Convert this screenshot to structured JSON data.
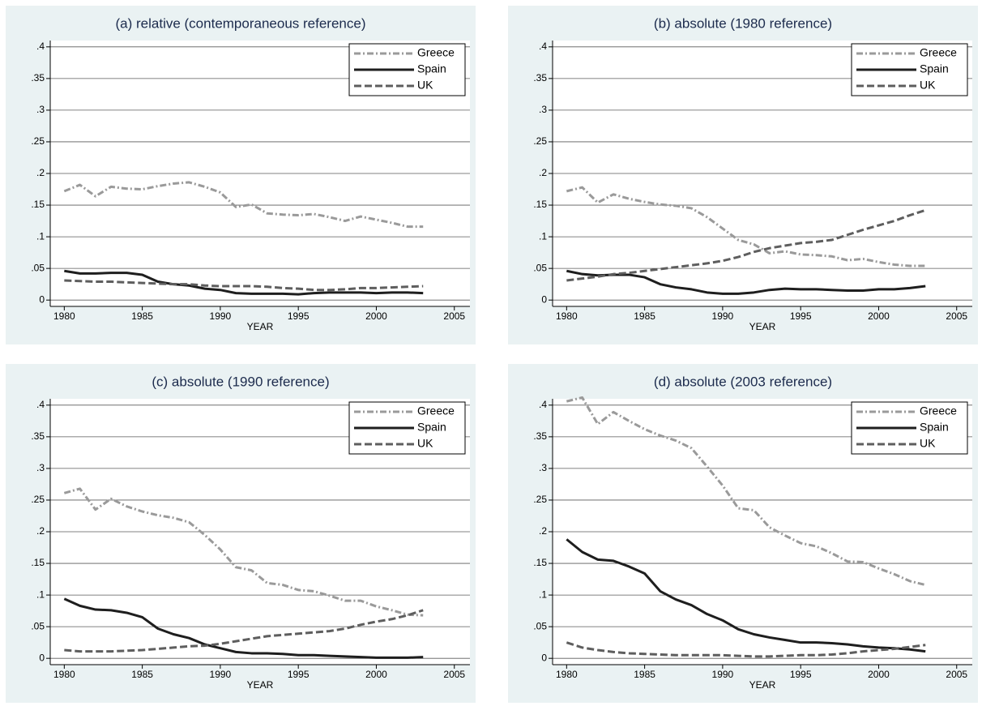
{
  "chart_data": [
    {
      "type": "line",
      "title": "(a) relative (contemporaneous reference)",
      "x_label": "YEAR",
      "x": [
        1980,
        1981,
        1982,
        1983,
        1984,
        1985,
        1986,
        1987,
        1988,
        1989,
        1990,
        1991,
        1992,
        1993,
        1994,
        1995,
        1996,
        1997,
        1998,
        1999,
        2000,
        2001,
        2002,
        2003
      ],
      "series": [
        {
          "name": "Greece",
          "color": "#9a9a9a",
          "linestyle": "dashdot",
          "values": [
            0.172,
            0.182,
            0.164,
            0.179,
            0.176,
            0.175,
            0.18,
            0.184,
            0.186,
            0.179,
            0.17,
            0.147,
            0.151,
            0.137,
            0.135,
            0.134,
            0.136,
            0.131,
            0.125,
            0.132,
            0.127,
            0.122,
            0.116,
            0.116
          ]
        },
        {
          "name": "Spain",
          "color": "#1e1e1e",
          "linestyle": "solid",
          "values": [
            0.046,
            0.042,
            0.042,
            0.043,
            0.043,
            0.04,
            0.029,
            0.025,
            0.023,
            0.018,
            0.016,
            0.011,
            0.01,
            0.01,
            0.01,
            0.009,
            0.011,
            0.012,
            0.012,
            0.012,
            0.011,
            0.012,
            0.012,
            0.011
          ]
        },
        {
          "name": "UK",
          "color": "#5e5e5e",
          "linestyle": "dashed",
          "values": [
            0.031,
            0.03,
            0.029,
            0.029,
            0.028,
            0.027,
            0.026,
            0.025,
            0.025,
            0.023,
            0.022,
            0.022,
            0.022,
            0.021,
            0.019,
            0.018,
            0.016,
            0.016,
            0.017,
            0.019,
            0.019,
            0.02,
            0.021,
            0.022
          ]
        }
      ],
      "xlim": [
        1979.1,
        2006
      ],
      "xticks": [
        1980,
        1985,
        1990,
        1995,
        2000,
        2005
      ],
      "ylim": [
        -0.01,
        0.41
      ],
      "yticks": [
        0,
        {
          "value": 0.05,
          "label": ".05"
        },
        {
          "value": 0.1,
          "label": ".1"
        },
        {
          "value": 0.15,
          "label": ".15"
        },
        {
          "value": 0.2,
          "label": ".2"
        },
        {
          "value": 0.25,
          "label": ".25"
        },
        {
          "value": 0.3,
          "label": ".3"
        },
        {
          "value": 0.35,
          "label": ".35"
        },
        {
          "value": 0.4,
          "label": ".4"
        }
      ],
      "grid": true,
      "legend": "upper right"
    },
    {
      "type": "line",
      "title": "(b) absolute (1980 reference)",
      "x_label": "YEAR",
      "x": [
        1980,
        1981,
        1982,
        1983,
        1984,
        1985,
        1986,
        1987,
        1988,
        1989,
        1990,
        1991,
        1992,
        1993,
        1994,
        1995,
        1996,
        1997,
        1998,
        1999,
        2000,
        2001,
        2002,
        2003
      ],
      "series": [
        {
          "name": "Greece",
          "color": "#9a9a9a",
          "linestyle": "dashdot",
          "values": [
            0.172,
            0.178,
            0.154,
            0.167,
            0.16,
            0.155,
            0.151,
            0.149,
            0.145,
            0.131,
            0.113,
            0.095,
            0.088,
            0.074,
            0.077,
            0.072,
            0.071,
            0.069,
            0.063,
            0.065,
            0.06,
            0.056,
            0.054,
            0.054
          ]
        },
        {
          "name": "Spain",
          "color": "#1e1e1e",
          "linestyle": "solid",
          "values": [
            0.046,
            0.041,
            0.039,
            0.04,
            0.04,
            0.036,
            0.025,
            0.02,
            0.017,
            0.012,
            0.01,
            0.01,
            0.012,
            0.016,
            0.018,
            0.017,
            0.017,
            0.016,
            0.015,
            0.015,
            0.017,
            0.017,
            0.019,
            0.022
          ]
        },
        {
          "name": "UK",
          "color": "#5e5e5e",
          "linestyle": "dashed",
          "values": [
            0.031,
            0.034,
            0.037,
            0.041,
            0.043,
            0.046,
            0.049,
            0.052,
            0.055,
            0.058,
            0.062,
            0.068,
            0.076,
            0.082,
            0.086,
            0.09,
            0.092,
            0.095,
            0.103,
            0.111,
            0.118,
            0.125,
            0.134,
            0.142
          ]
        }
      ],
      "xlim": [
        1979.1,
        2006
      ],
      "xticks": [
        1980,
        1985,
        1990,
        1995,
        2000,
        2005
      ],
      "ylim": [
        -0.01,
        0.41
      ],
      "yticks": [
        0,
        {
          "value": 0.05,
          "label": ".05"
        },
        {
          "value": 0.1,
          "label": ".1"
        },
        {
          "value": 0.15,
          "label": ".15"
        },
        {
          "value": 0.2,
          "label": ".2"
        },
        {
          "value": 0.25,
          "label": ".25"
        },
        {
          "value": 0.3,
          "label": ".3"
        },
        {
          "value": 0.35,
          "label": ".35"
        },
        {
          "value": 0.4,
          "label": ".4"
        }
      ],
      "grid": true,
      "legend": "upper right"
    },
    {
      "type": "line",
      "title": "(c) absolute (1990 reference)",
      "x_label": "YEAR",
      "x": [
        1980,
        1981,
        1982,
        1983,
        1984,
        1985,
        1986,
        1987,
        1988,
        1989,
        1990,
        1991,
        1992,
        1993,
        1994,
        1995,
        1996,
        1997,
        1998,
        1999,
        2000,
        2001,
        2002,
        2003
      ],
      "series": [
        {
          "name": "Greece",
          "color": "#9a9a9a",
          "linestyle": "dashdot",
          "values": [
            0.261,
            0.268,
            0.235,
            0.252,
            0.24,
            0.232,
            0.226,
            0.222,
            0.215,
            0.195,
            0.172,
            0.144,
            0.139,
            0.119,
            0.116,
            0.108,
            0.106,
            0.099,
            0.091,
            0.091,
            0.082,
            0.076,
            0.069,
            0.068
          ]
        },
        {
          "name": "Spain",
          "color": "#1e1e1e",
          "linestyle": "solid",
          "values": [
            0.094,
            0.083,
            0.077,
            0.076,
            0.072,
            0.065,
            0.047,
            0.038,
            0.032,
            0.022,
            0.016,
            0.01,
            0.008,
            0.008,
            0.007,
            0.005,
            0.005,
            0.004,
            0.003,
            0.002,
            0.001,
            0.001,
            0.001,
            0.002
          ]
        },
        {
          "name": "UK",
          "color": "#5e5e5e",
          "linestyle": "dashed",
          "values": [
            0.013,
            0.011,
            0.011,
            0.011,
            0.012,
            0.013,
            0.015,
            0.017,
            0.019,
            0.02,
            0.023,
            0.027,
            0.031,
            0.035,
            0.037,
            0.039,
            0.041,
            0.043,
            0.047,
            0.053,
            0.058,
            0.062,
            0.068,
            0.076
          ]
        }
      ],
      "xlim": [
        1979.1,
        2006
      ],
      "xticks": [
        1980,
        1985,
        1990,
        1995,
        2000,
        2005
      ],
      "ylim": [
        -0.01,
        0.41
      ],
      "yticks": [
        0,
        {
          "value": 0.05,
          "label": ".05"
        },
        {
          "value": 0.1,
          "label": ".1"
        },
        {
          "value": 0.15,
          "label": ".15"
        },
        {
          "value": 0.2,
          "label": ".2"
        },
        {
          "value": 0.25,
          "label": ".25"
        },
        {
          "value": 0.3,
          "label": ".3"
        },
        {
          "value": 0.35,
          "label": ".35"
        },
        {
          "value": 0.4,
          "label": ".4"
        }
      ],
      "grid": true,
      "legend": "upper right"
    },
    {
      "type": "line",
      "title": "(d) absolute (2003 reference)",
      "x_label": "YEAR",
      "x": [
        1980,
        1981,
        1982,
        1983,
        1984,
        1985,
        1986,
        1987,
        1988,
        1989,
        1990,
        1991,
        1992,
        1993,
        1994,
        1995,
        1996,
        1997,
        1998,
        1999,
        2000,
        2001,
        2002,
        2003
      ],
      "series": [
        {
          "name": "Greece",
          "color": "#9a9a9a",
          "linestyle": "dashdot",
          "values": [
            0.406,
            0.412,
            0.37,
            0.389,
            0.375,
            0.362,
            0.352,
            0.344,
            0.332,
            0.303,
            0.273,
            0.237,
            0.234,
            0.207,
            0.194,
            0.182,
            0.177,
            0.166,
            0.153,
            0.152,
            0.142,
            0.133,
            0.122,
            0.116
          ]
        },
        {
          "name": "Spain",
          "color": "#1e1e1e",
          "linestyle": "solid",
          "values": [
            0.188,
            0.168,
            0.156,
            0.154,
            0.145,
            0.134,
            0.106,
            0.093,
            0.084,
            0.07,
            0.06,
            0.046,
            0.038,
            0.033,
            0.029,
            0.025,
            0.025,
            0.024,
            0.022,
            0.019,
            0.017,
            0.016,
            0.014,
            0.011
          ]
        },
        {
          "name": "UK",
          "color": "#5e5e5e",
          "linestyle": "dashed",
          "values": [
            0.025,
            0.017,
            0.013,
            0.01,
            0.008,
            0.007,
            0.006,
            0.005,
            0.005,
            0.005,
            0.005,
            0.004,
            0.003,
            0.003,
            0.004,
            0.005,
            0.005,
            0.006,
            0.008,
            0.011,
            0.013,
            0.015,
            0.018,
            0.021
          ]
        }
      ],
      "xlim": [
        1979.1,
        2006
      ],
      "xticks": [
        1980,
        1985,
        1990,
        1995,
        2000,
        2005
      ],
      "ylim": [
        -0.01,
        0.41
      ],
      "yticks": [
        0,
        {
          "value": 0.05,
          "label": ".05"
        },
        {
          "value": 0.1,
          "label": ".1"
        },
        {
          "value": 0.15,
          "label": ".15"
        },
        {
          "value": 0.2,
          "label": ".2"
        },
        {
          "value": 0.25,
          "label": ".25"
        },
        {
          "value": 0.3,
          "label": ".3"
        },
        {
          "value": 0.35,
          "label": ".35"
        },
        {
          "value": 0.4,
          "label": ".4"
        }
      ],
      "grid": true,
      "legend": "upper right"
    }
  ]
}
